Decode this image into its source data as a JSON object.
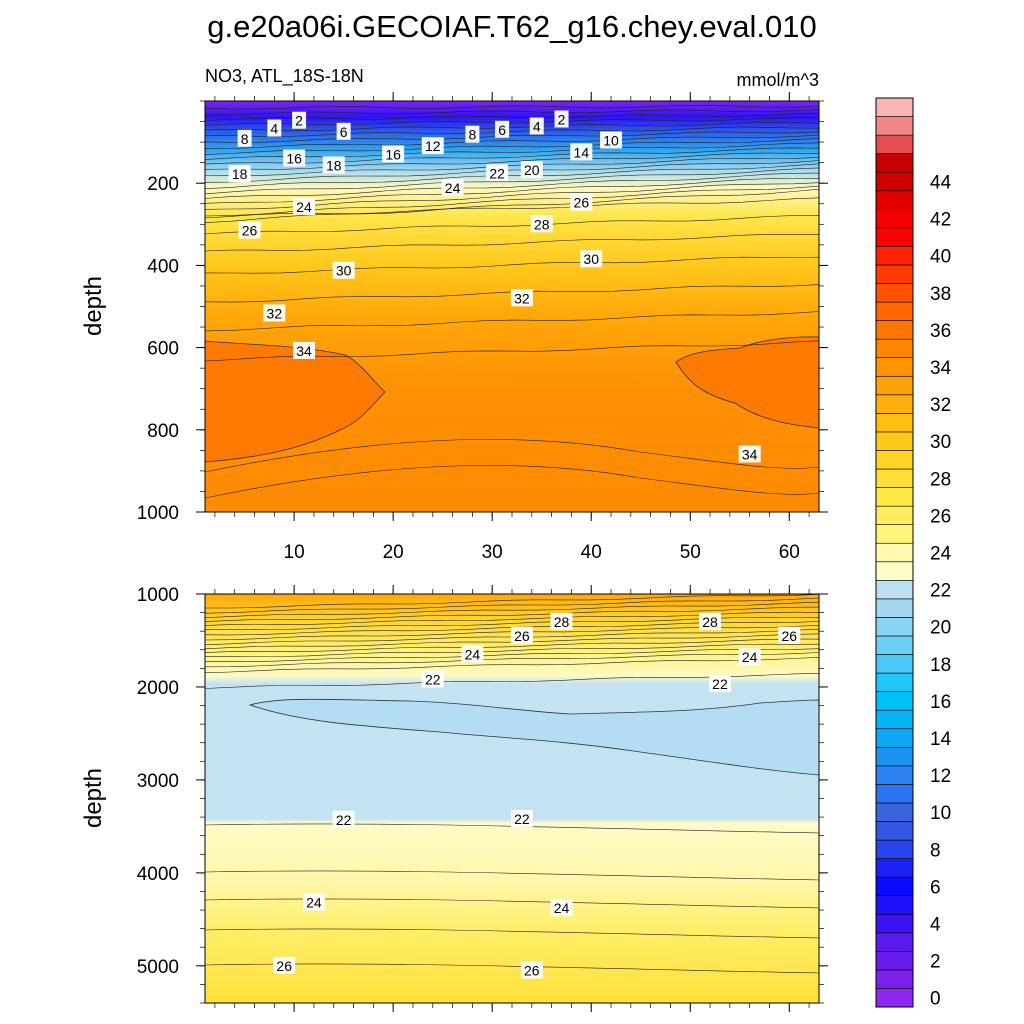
{
  "title": "g.e20a06i.GECOIAF.T62_g16.chey.eval.010",
  "subtitle_left": "NO3, ATL_18S-18N",
  "subtitle_right": "mmol/m^3",
  "chart_data": [
    {
      "type": "heatmap",
      "panel": "upper",
      "ylabel": "depth",
      "ylim": [
        1000,
        0
      ],
      "xlim": [
        1,
        63
      ],
      "x_ticks": [
        10,
        20,
        30,
        40,
        50,
        60
      ],
      "y_ticks": [
        200,
        400,
        600,
        800,
        1000
      ],
      "contour_interval": 1,
      "contour_labels": [
        {
          "value": "2",
          "x": 10.5,
          "y": 48
        },
        {
          "value": "2",
          "x": 37,
          "y": 45
        },
        {
          "value": "4",
          "x": 8,
          "y": 67
        },
        {
          "value": "4",
          "x": 34.5,
          "y": 62
        },
        {
          "value": "6",
          "x": 15,
          "y": 75
        },
        {
          "value": "6",
          "x": 31,
          "y": 70
        },
        {
          "value": "8",
          "x": 5,
          "y": 92
        },
        {
          "value": "8",
          "x": 28,
          "y": 82
        },
        {
          "value": "10",
          "x": 42,
          "y": 96
        },
        {
          "value": "12",
          "x": 24,
          "y": 110
        },
        {
          "value": "14",
          "x": 39,
          "y": 125
        },
        {
          "value": "16",
          "x": 10,
          "y": 140
        },
        {
          "value": "16",
          "x": 20,
          "y": 130
        },
        {
          "value": "18",
          "x": 4.5,
          "y": 178
        },
        {
          "value": "18",
          "x": 14,
          "y": 157
        },
        {
          "value": "20",
          "x": 34,
          "y": 168
        },
        {
          "value": "22",
          "x": 30.5,
          "y": 176
        },
        {
          "value": "24",
          "x": 26,
          "y": 212
        },
        {
          "value": "24",
          "x": 11,
          "y": 258
        },
        {
          "value": "26",
          "x": 39,
          "y": 247
        },
        {
          "value": "26",
          "x": 5.5,
          "y": 315
        },
        {
          "value": "28",
          "x": 35,
          "y": 300
        },
        {
          "value": "30",
          "x": 40,
          "y": 385
        },
        {
          "value": "30",
          "x": 15,
          "y": 413
        },
        {
          "value": "32",
          "x": 8,
          "y": 517
        },
        {
          "value": "32",
          "x": 33,
          "y": 480
        },
        {
          "value": "34",
          "x": 11,
          "y": 608
        },
        {
          "value": "34",
          "x": 56,
          "y": 860
        }
      ]
    },
    {
      "type": "heatmap",
      "panel": "lower",
      "ylabel": "depth",
      "ylim": [
        5400,
        1000
      ],
      "y_ticks": [
        1000,
        2000,
        3000,
        4000,
        5000
      ],
      "contour_interval": 1,
      "contour_labels": [
        {
          "value": "28",
          "x": 37,
          "y": 1300
        },
        {
          "value": "28",
          "x": 52,
          "y": 1300
        },
        {
          "value": "26",
          "x": 33,
          "y": 1450
        },
        {
          "value": "26",
          "x": 60,
          "y": 1450
        },
        {
          "value": "24",
          "x": 28,
          "y": 1650
        },
        {
          "value": "24",
          "x": 56,
          "y": 1680
        },
        {
          "value": "22",
          "x": 24,
          "y": 1920
        },
        {
          "value": "22",
          "x": 53,
          "y": 1970
        },
        {
          "value": "22",
          "x": 15,
          "y": 3430
        },
        {
          "value": "22",
          "x": 33,
          "y": 3420
        },
        {
          "value": "24",
          "x": 12,
          "y": 4320
        },
        {
          "value": "24",
          "x": 37,
          "y": 4380
        },
        {
          "value": "26",
          "x": 9,
          "y": 5000
        },
        {
          "value": "26",
          "x": 34,
          "y": 5050
        }
      ]
    }
  ],
  "colorbar": {
    "labels": [
      "0",
      "2",
      "4",
      "6",
      "8",
      "10",
      "12",
      "14",
      "16",
      "18",
      "20",
      "22",
      "24",
      "26",
      "28",
      "30",
      "32",
      "34",
      "36",
      "38",
      "40",
      "42",
      "44"
    ],
    "colors": [
      "#8f27ef",
      "#7d20ee",
      "#6a1aed",
      "#5a1bef",
      "#3c11f5",
      "#2010fa",
      "#0a0afe",
      "#1c22f4",
      "#2a44ed",
      "#3357e3",
      "#3d64df",
      "#2b73f3",
      "#2c81f3",
      "#1e92f3",
      "#0fa6f4",
      "#04b4f5",
      "#00c1f6",
      "#21c6f7",
      "#4ac9f6",
      "#6ccff5",
      "#8bd3f2",
      "#a4d8f0",
      "#bce0f1",
      "#fdfcc5",
      "#fff8ae",
      "#fff47a",
      "#ffed5d",
      "#ffe845",
      "#ffdf37",
      "#ffd424",
      "#ffc818",
      "#ffbf12",
      "#ffb00c",
      "#ffa108",
      "#ff9405",
      "#ff8503",
      "#ff7502",
      "#ff6601",
      "#ff5200",
      "#fe3b00",
      "#ff2200",
      "#ff0000",
      "#f40000",
      "#e40000",
      "#d00000",
      "#c60000",
      "#e44e4e",
      "#f08888",
      "#fab4b4"
    ]
  }
}
